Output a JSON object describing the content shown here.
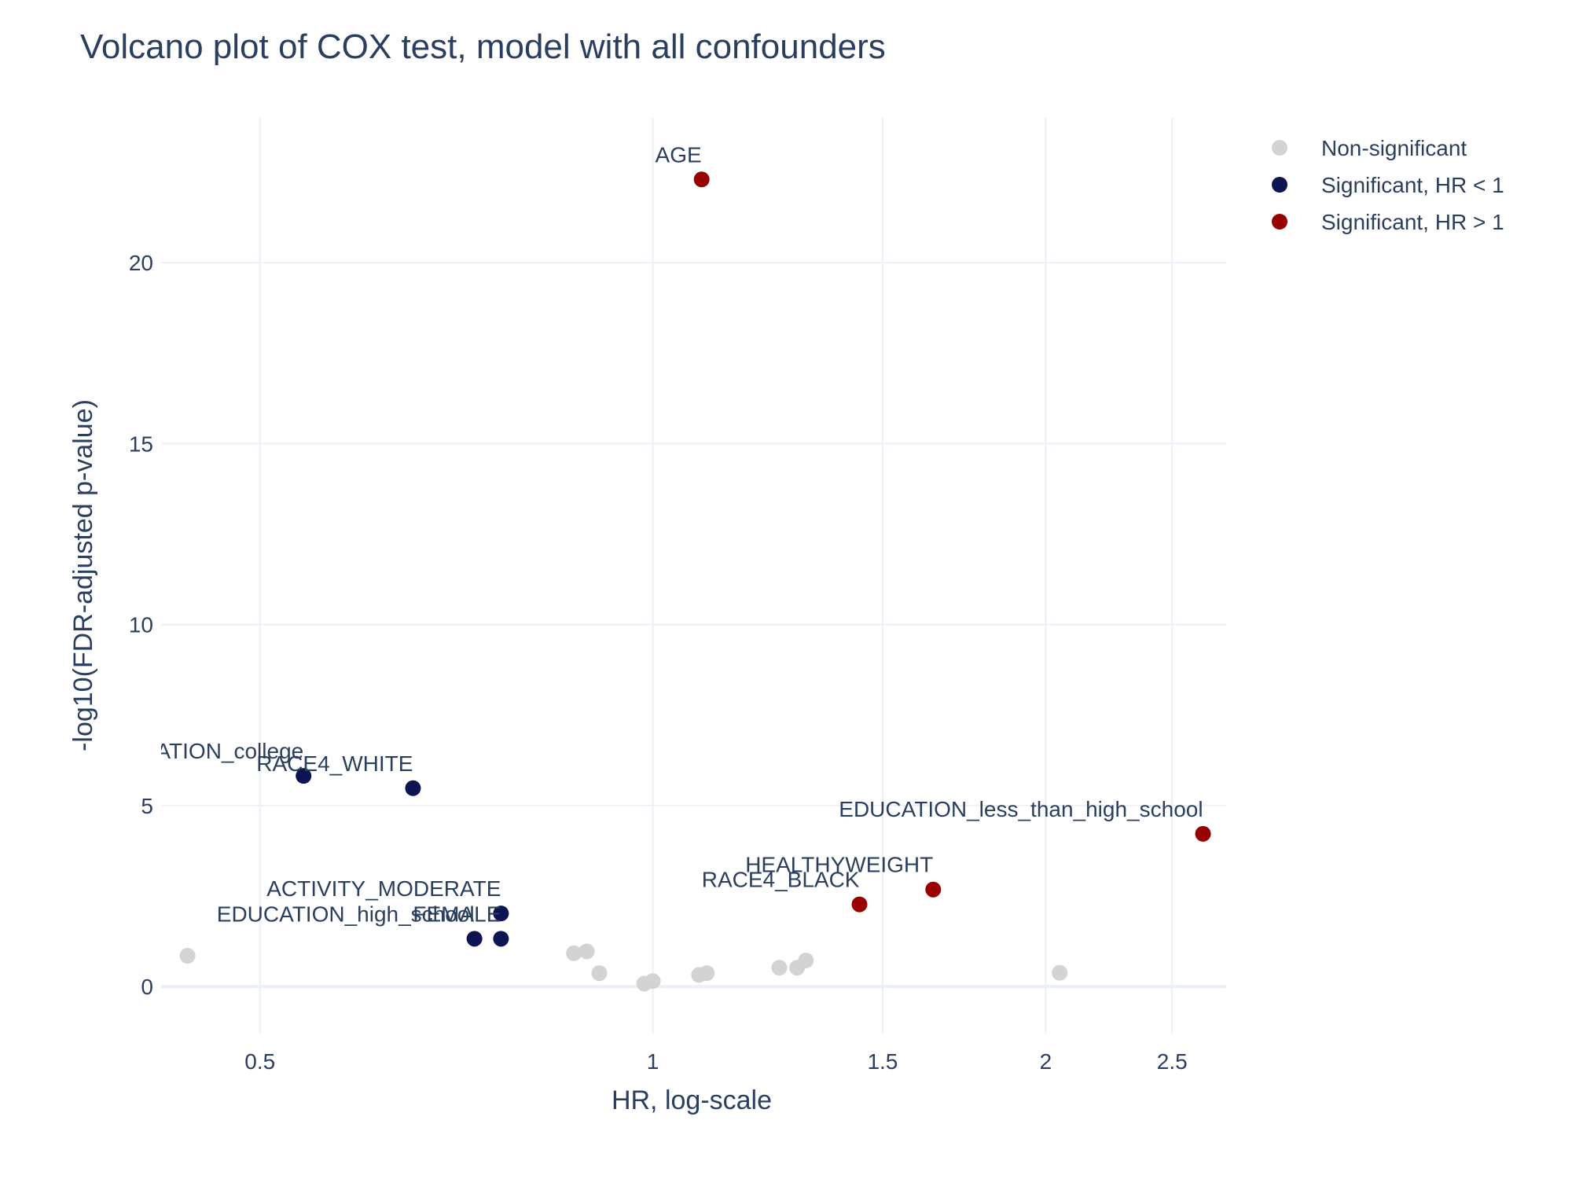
{
  "chart_data": {
    "type": "scatter",
    "title": "Volcano plot of COX test, model with all confounders",
    "xlabel": "HR, log-scale",
    "ylabel": "-log10(FDR-adjusted p-value)",
    "x_scale": "log",
    "xlim": [
      0.42,
      2.75
    ],
    "ylim": [
      -1.3,
      24.0
    ],
    "x_ticks": [
      0.5,
      1,
      1.5,
      2,
      2.5
    ],
    "x_tick_labels": [
      "0.5",
      "1",
      "1.5",
      "2",
      "2.5"
    ],
    "y_ticks": [
      0,
      5,
      10,
      15,
      20
    ],
    "y_tick_labels": [
      "0",
      "5",
      "10",
      "15",
      "20"
    ],
    "grid": true,
    "legend_position": "top-right",
    "series": [
      {
        "name": "Non-significant",
        "color": "#d3d3d3",
        "points": [
          {
            "x": 0.44,
            "y": 0.85
          },
          {
            "x": 0.87,
            "y": 0.92
          },
          {
            "x": 0.89,
            "y": 0.97
          },
          {
            "x": 0.91,
            "y": 0.37
          },
          {
            "x": 0.985,
            "y": 0.08
          },
          {
            "x": 1.0,
            "y": 0.15
          },
          {
            "x": 1.085,
            "y": 0.32
          },
          {
            "x": 1.1,
            "y": 0.37
          },
          {
            "x": 1.25,
            "y": 0.52
          },
          {
            "x": 1.29,
            "y": 0.52
          },
          {
            "x": 1.31,
            "y": 0.72
          },
          {
            "x": 2.05,
            "y": 0.38
          }
        ]
      },
      {
        "name": "Significant, HR < 1",
        "color": "#0d1452",
        "points": [
          {
            "x": 0.54,
            "y": 5.82,
            "label": "EDUCATION_college"
          },
          {
            "x": 0.655,
            "y": 5.48,
            "label": "RACE4_WHITE"
          },
          {
            "x": 0.765,
            "y": 2.02,
            "label": "ACTIVITY_MODERATE"
          },
          {
            "x": 0.73,
            "y": 1.32,
            "label": "EDUCATION_high_school"
          },
          {
            "x": 0.765,
            "y": 1.32,
            "label": "FEMALE"
          }
        ]
      },
      {
        "name": "Significant, HR > 1",
        "color": "#990000",
        "points": [
          {
            "x": 1.09,
            "y": 22.3,
            "label": "AGE"
          },
          {
            "x": 2.64,
            "y": 4.22,
            "label": "EDUCATION_less_than_high_school"
          },
          {
            "x": 1.64,
            "y": 2.68,
            "label": "HEALTHYWEIGHT"
          },
          {
            "x": 1.44,
            "y": 2.27,
            "label": "RACE4_BLACK"
          }
        ]
      }
    ]
  }
}
